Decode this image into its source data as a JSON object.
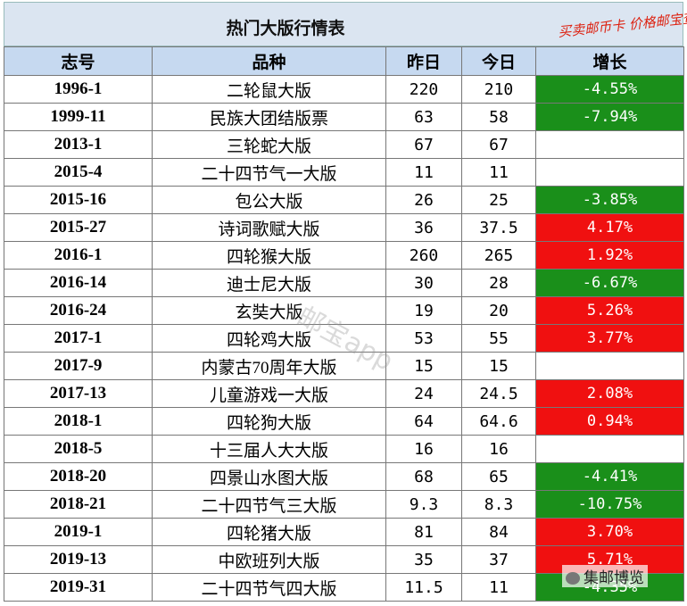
{
  "header": {
    "title": "热门大版行情表",
    "slogan": "买卖邮币卡 价格邮宝查"
  },
  "table": {
    "columns": [
      "志号",
      "品种",
      "昨日",
      "今日",
      "增长"
    ],
    "rows": [
      [
        "1996-1",
        "二轮鼠大版",
        "220",
        "210",
        "-4.55%"
      ],
      [
        "1999-11",
        "民族大团结版票",
        "63",
        "58",
        "-7.94%"
      ],
      [
        "2013-1",
        "三轮蛇大版",
        "67",
        "67",
        null
      ],
      [
        "2015-4",
        "二十四节气一大版",
        "11",
        "11",
        null
      ],
      [
        "2015-16",
        "包公大版",
        "26",
        "25",
        "-3.85%"
      ],
      [
        "2015-27",
        "诗词歌赋大版",
        "36",
        "37.5",
        "4.17%"
      ],
      [
        "2016-1",
        "四轮猴大版",
        "260",
        "265",
        "1.92%"
      ],
      [
        "2016-14",
        "迪士尼大版",
        "30",
        "28",
        "-6.67%"
      ],
      [
        "2016-24",
        "玄奘大版",
        "19",
        "20",
        "5.26%"
      ],
      [
        "2017-1",
        "四轮鸡大版",
        "53",
        "55",
        "3.77%"
      ],
      [
        "2017-9",
        "内蒙古70周年大版",
        "15",
        "15",
        null
      ],
      [
        "2017-13",
        "儿童游戏一大版",
        "24",
        "24.5",
        "2.08%"
      ],
      [
        "2018-1",
        "四轮狗大版",
        "64",
        "64.6",
        "0.94%"
      ],
      [
        "2018-5",
        "十三届人大大版",
        "16",
        "16",
        null
      ],
      [
        "2018-20",
        "四景山水图大版",
        "68",
        "65",
        "-4.41%"
      ],
      [
        "2018-21",
        "二十四节气三大版",
        "9.3",
        "8.3",
        "-10.75%"
      ],
      [
        "2019-1",
        "四轮猪大版",
        "81",
        "84",
        "3.70%"
      ],
      [
        "2019-13",
        "中欧班列大版",
        "35",
        "37",
        "5.71%"
      ],
      [
        "2019-31",
        "二十四节气四大版",
        "11.5",
        "11",
        "-4.35%"
      ]
    ]
  },
  "watermark": "邮宝app",
  "logo": "集邮博览"
}
